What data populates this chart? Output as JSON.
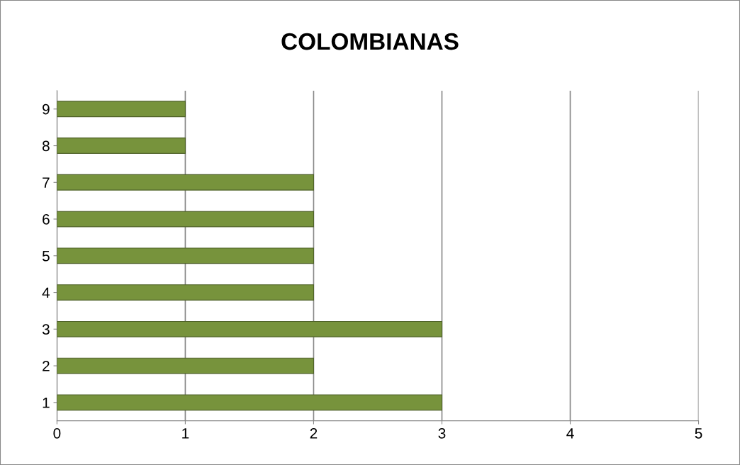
{
  "chart_data": {
    "type": "bar",
    "orientation": "horizontal",
    "title": "COLOMBIANAS",
    "categories": [
      "9",
      "8",
      "7",
      "6",
      "5",
      "4",
      "3",
      "2",
      "1"
    ],
    "values": [
      1,
      1,
      2,
      2,
      2,
      2,
      3,
      2,
      3
    ],
    "color": "#77933c",
    "xlim": [
      0,
      5
    ],
    "xticks": [
      0,
      1,
      2,
      3,
      4,
      5
    ],
    "grid": "x",
    "legend": false
  }
}
